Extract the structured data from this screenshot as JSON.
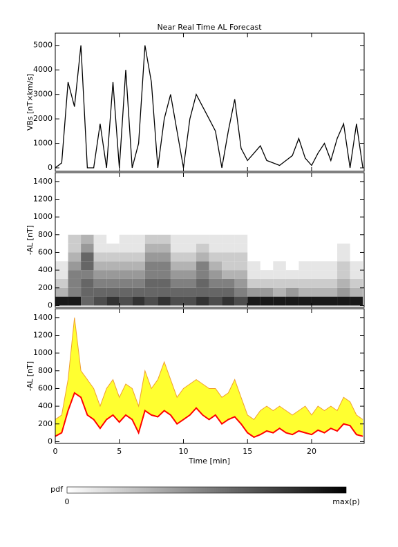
{
  "chart_data": [
    {
      "type": "line",
      "title": "Near Real Time AL Forecast",
      "ylabel": "VBs [nT×km/s]",
      "xlim": [
        0,
        24.1
      ],
      "ylim": [
        -140,
        5500
      ],
      "yticks": [
        0,
        1000,
        2000,
        3000,
        4000,
        5000
      ],
      "x": [
        0,
        0.5,
        1,
        1.5,
        2,
        2.5,
        3,
        3.5,
        4,
        4.5,
        5,
        5.5,
        6,
        6.5,
        7,
        7.5,
        8,
        8.5,
        9,
        9.5,
        10,
        10.5,
        11,
        11.5,
        12,
        12.5,
        13,
        13.5,
        14,
        14.5,
        15,
        15.5,
        16,
        16.5,
        17,
        17.5,
        18,
        18.5,
        19,
        19.5,
        20,
        20.5,
        21,
        21.5,
        22,
        22.5,
        23,
        23.5,
        24
      ],
      "series": [
        {
          "color": "#000000",
          "values": [
            0,
            200,
            3500,
            2500,
            5000,
            0,
            0,
            1800,
            0,
            3500,
            0,
            4000,
            0,
            1000,
            5000,
            3500,
            0,
            2000,
            3000,
            1500,
            0,
            2000,
            3000,
            2500,
            2000,
            1500,
            0,
            1500,
            2800,
            800,
            300,
            600,
            900,
            300,
            200,
            100,
            300,
            500,
            1200,
            400,
            100,
            600,
            1000,
            300,
            1200,
            1800,
            0,
            1800,
            0
          ]
        }
      ]
    },
    {
      "type": "heatmap",
      "ylabel": "-AL [nT]",
      "xlim": [
        0,
        24.1
      ],
      "ylim": [
        -20,
        1500
      ],
      "yticks": [
        0,
        200,
        400,
        600,
        800,
        1000,
        1200,
        1400
      ],
      "xbins": [
        0,
        1,
        2,
        3,
        4,
        5,
        6,
        7,
        8,
        9,
        10,
        11,
        12,
        13,
        14,
        15,
        16,
        17,
        18,
        19,
        20,
        21,
        22,
        23,
        24
      ],
      "ybins": [
        0,
        100,
        200,
        300,
        400,
        500,
        600,
        700,
        800
      ],
      "z": [
        [
          0.9,
          0.9,
          0.6,
          0.7,
          0.8,
          0.7,
          0.8,
          0.7,
          0.8,
          0.7,
          0.7,
          0.8,
          0.7,
          0.8,
          0.7,
          0.9,
          0.9,
          0.9,
          0.9,
          0.9,
          0.9,
          0.9,
          0.9,
          0.9
        ],
        [
          0.3,
          0.5,
          0.6,
          0.6,
          0.6,
          0.6,
          0.6,
          0.6,
          0.6,
          0.6,
          0.6,
          0.6,
          0.6,
          0.6,
          0.5,
          0.4,
          0.4,
          0.3,
          0.4,
          0.3,
          0.3,
          0.3,
          0.4,
          0.3
        ],
        [
          0.2,
          0.5,
          0.6,
          0.5,
          0.5,
          0.5,
          0.5,
          0.6,
          0.6,
          0.5,
          0.5,
          0.6,
          0.5,
          0.5,
          0.4,
          0.2,
          0.2,
          0.2,
          0.2,
          0.2,
          0.2,
          0.2,
          0.3,
          0.2
        ],
        [
          0.1,
          0.5,
          0.5,
          0.4,
          0.4,
          0.4,
          0.4,
          0.5,
          0.5,
          0.4,
          0.4,
          0.5,
          0.4,
          0.3,
          0.3,
          0.1,
          0.1,
          0.1,
          0.1,
          0.1,
          0.1,
          0.1,
          0.2,
          0.1
        ],
        [
          0.1,
          0.4,
          0.6,
          0.3,
          0.3,
          0.3,
          0.3,
          0.5,
          0.5,
          0.3,
          0.3,
          0.5,
          0.3,
          0.2,
          0.2,
          0.1,
          0,
          0.1,
          0,
          0.1,
          0.1,
          0.1,
          0.2,
          0.1
        ],
        [
          0,
          0.3,
          0.6,
          0.2,
          0.2,
          0.2,
          0.2,
          0.4,
          0.4,
          0.2,
          0.2,
          0.3,
          0.2,
          0.2,
          0.2,
          0,
          0,
          0,
          0,
          0,
          0,
          0,
          0.1,
          0
        ],
        [
          0,
          0.2,
          0.4,
          0.1,
          0.1,
          0.1,
          0.1,
          0.3,
          0.3,
          0.1,
          0.1,
          0.2,
          0.1,
          0.1,
          0.1,
          0,
          0,
          0,
          0,
          0,
          0,
          0,
          0.1,
          0
        ],
        [
          0,
          0.2,
          0.3,
          0.1,
          0,
          0.1,
          0.1,
          0.2,
          0.2,
          0.1,
          0.1,
          0.1,
          0.1,
          0.1,
          0.1,
          0,
          0,
          0,
          0,
          0,
          0,
          0,
          0,
          0
        ]
      ],
      "colorbar": {
        "label": "pdf",
        "min_label": "0",
        "max_label": "max(p)"
      }
    },
    {
      "type": "area",
      "ylabel": "-AL [nT]",
      "xlabel": "Time [min]",
      "xlim": [
        0,
        24.1
      ],
      "ylim": [
        -20,
        1500
      ],
      "yticks": [
        0,
        200,
        400,
        600,
        800,
        1000,
        1200,
        1400
      ],
      "xticks": [
        0,
        5,
        10,
        15,
        20
      ],
      "x": [
        0,
        0.5,
        1,
        1.5,
        2,
        2.5,
        3,
        3.5,
        4,
        4.5,
        5,
        5.5,
        6,
        6.5,
        7,
        7.5,
        8,
        8.5,
        9,
        9.5,
        10,
        10.5,
        11,
        11.5,
        12,
        12.5,
        13,
        13.5,
        14,
        14.5,
        15,
        15.5,
        16,
        16.5,
        17,
        17.5,
        18,
        18.5,
        19,
        19.5,
        20,
        20.5,
        21,
        21.5,
        22,
        22.5,
        23,
        23.5,
        24
      ],
      "band": {
        "color": "#ffff30",
        "edge": "#f0a030",
        "upper": [
          250,
          300,
          700,
          1400,
          800,
          700,
          600,
          400,
          600,
          700,
          500,
          650,
          600,
          400,
          800,
          600,
          700,
          900,
          700,
          500,
          600,
          650,
          700,
          650,
          600,
          600,
          500,
          550,
          700,
          500,
          300,
          250,
          350,
          400,
          350,
          400,
          350,
          300,
          350,
          400,
          300,
          400,
          350,
          400,
          350,
          500,
          450,
          300,
          250
        ]
      },
      "series": [
        {
          "color": "#ff0000",
          "values": [
            60,
            100,
            350,
            550,
            500,
            300,
            250,
            150,
            250,
            300,
            220,
            300,
            250,
            100,
            350,
            300,
            280,
            350,
            300,
            200,
            250,
            300,
            380,
            300,
            250,
            300,
            200,
            250,
            280,
            200,
            100,
            50,
            80,
            120,
            100,
            150,
            100,
            80,
            120,
            100,
            80,
            130,
            100,
            150,
            120,
            200,
            180,
            80,
            60
          ]
        }
      ]
    }
  ]
}
